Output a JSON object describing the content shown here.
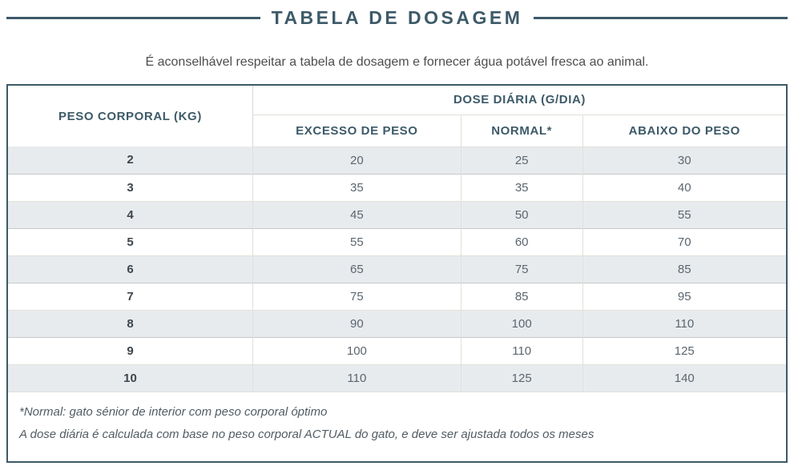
{
  "page": {
    "title": "TABELA DE DOSAGEM",
    "subtitle": "É aconselhável respeitar a tabela de dosagem e fornecer água potável fresca ao animal."
  },
  "table": {
    "col1_header": "PESO CORPORAL (KG)",
    "group_header": "DOSE DIÁRIA (G/DIA)",
    "columns": [
      "EXCESSO DE PESO",
      "NORMAL*",
      "ABAIXO DO PESO"
    ],
    "rows": [
      {
        "weight": "2",
        "values": [
          "20",
          "25",
          "30"
        ]
      },
      {
        "weight": "3",
        "values": [
          "35",
          "35",
          "40"
        ]
      },
      {
        "weight": "4",
        "values": [
          "45",
          "50",
          "55"
        ]
      },
      {
        "weight": "5",
        "values": [
          "55",
          "60",
          "70"
        ]
      },
      {
        "weight": "6",
        "values": [
          "65",
          "75",
          "85"
        ]
      },
      {
        "weight": "7",
        "values": [
          "75",
          "85",
          "95"
        ]
      },
      {
        "weight": "8",
        "values": [
          "90",
          "100",
          "110"
        ]
      },
      {
        "weight": "9",
        "values": [
          "100",
          "110",
          "125"
        ]
      },
      {
        "weight": "10",
        "values": [
          "110",
          "125",
          "140"
        ]
      }
    ],
    "footnotes": [
      "*Normal: gato sénior de interior com peso corporal óptimo",
      "A dose diária é calculada com base no peso corporal ACTUAL do gato, e deve ser ajustada todos os meses"
    ]
  },
  "colors": {
    "accent": "#3d5a68",
    "stripe": "#e8ebee"
  }
}
